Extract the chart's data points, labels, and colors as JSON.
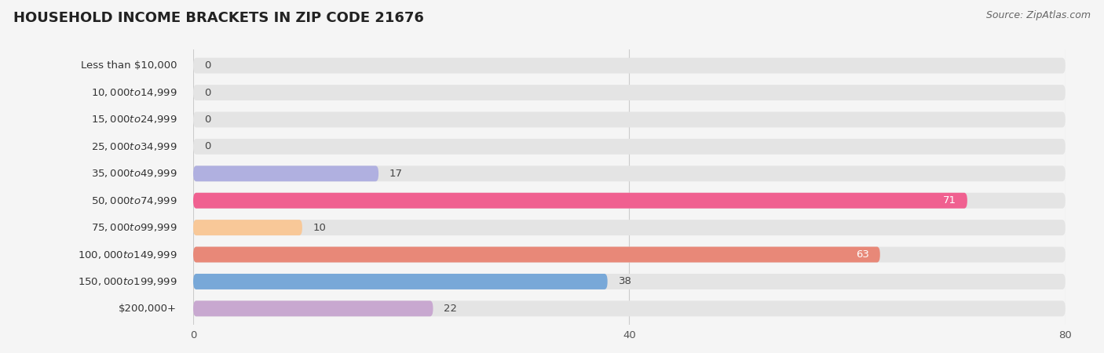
{
  "title": "HOUSEHOLD INCOME BRACKETS IN ZIP CODE 21676",
  "source": "Source: ZipAtlas.com",
  "categories": [
    "Less than $10,000",
    "$10,000 to $14,999",
    "$15,000 to $24,999",
    "$25,000 to $34,999",
    "$35,000 to $49,999",
    "$50,000 to $74,999",
    "$75,000 to $99,999",
    "$100,000 to $149,999",
    "$150,000 to $199,999",
    "$200,000+"
  ],
  "values": [
    0,
    0,
    0,
    0,
    17,
    71,
    10,
    63,
    38,
    22
  ],
  "bar_colors": [
    "#f4a0a8",
    "#a8c4e0",
    "#c8a8d8",
    "#78d0c8",
    "#b0b0e0",
    "#f06090",
    "#f8c898",
    "#e88878",
    "#78a8d8",
    "#c8a8d0"
  ],
  "background_color": "#f5f5f5",
  "bar_background_color": "#e4e4e4",
  "xlim_data": [
    0,
    80
  ],
  "xticks": [
    0,
    40,
    80
  ],
  "title_fontsize": 13,
  "label_fontsize": 9.5,
  "value_fontsize": 9.5,
  "bar_height": 0.58,
  "label_inside_threshold": 50
}
